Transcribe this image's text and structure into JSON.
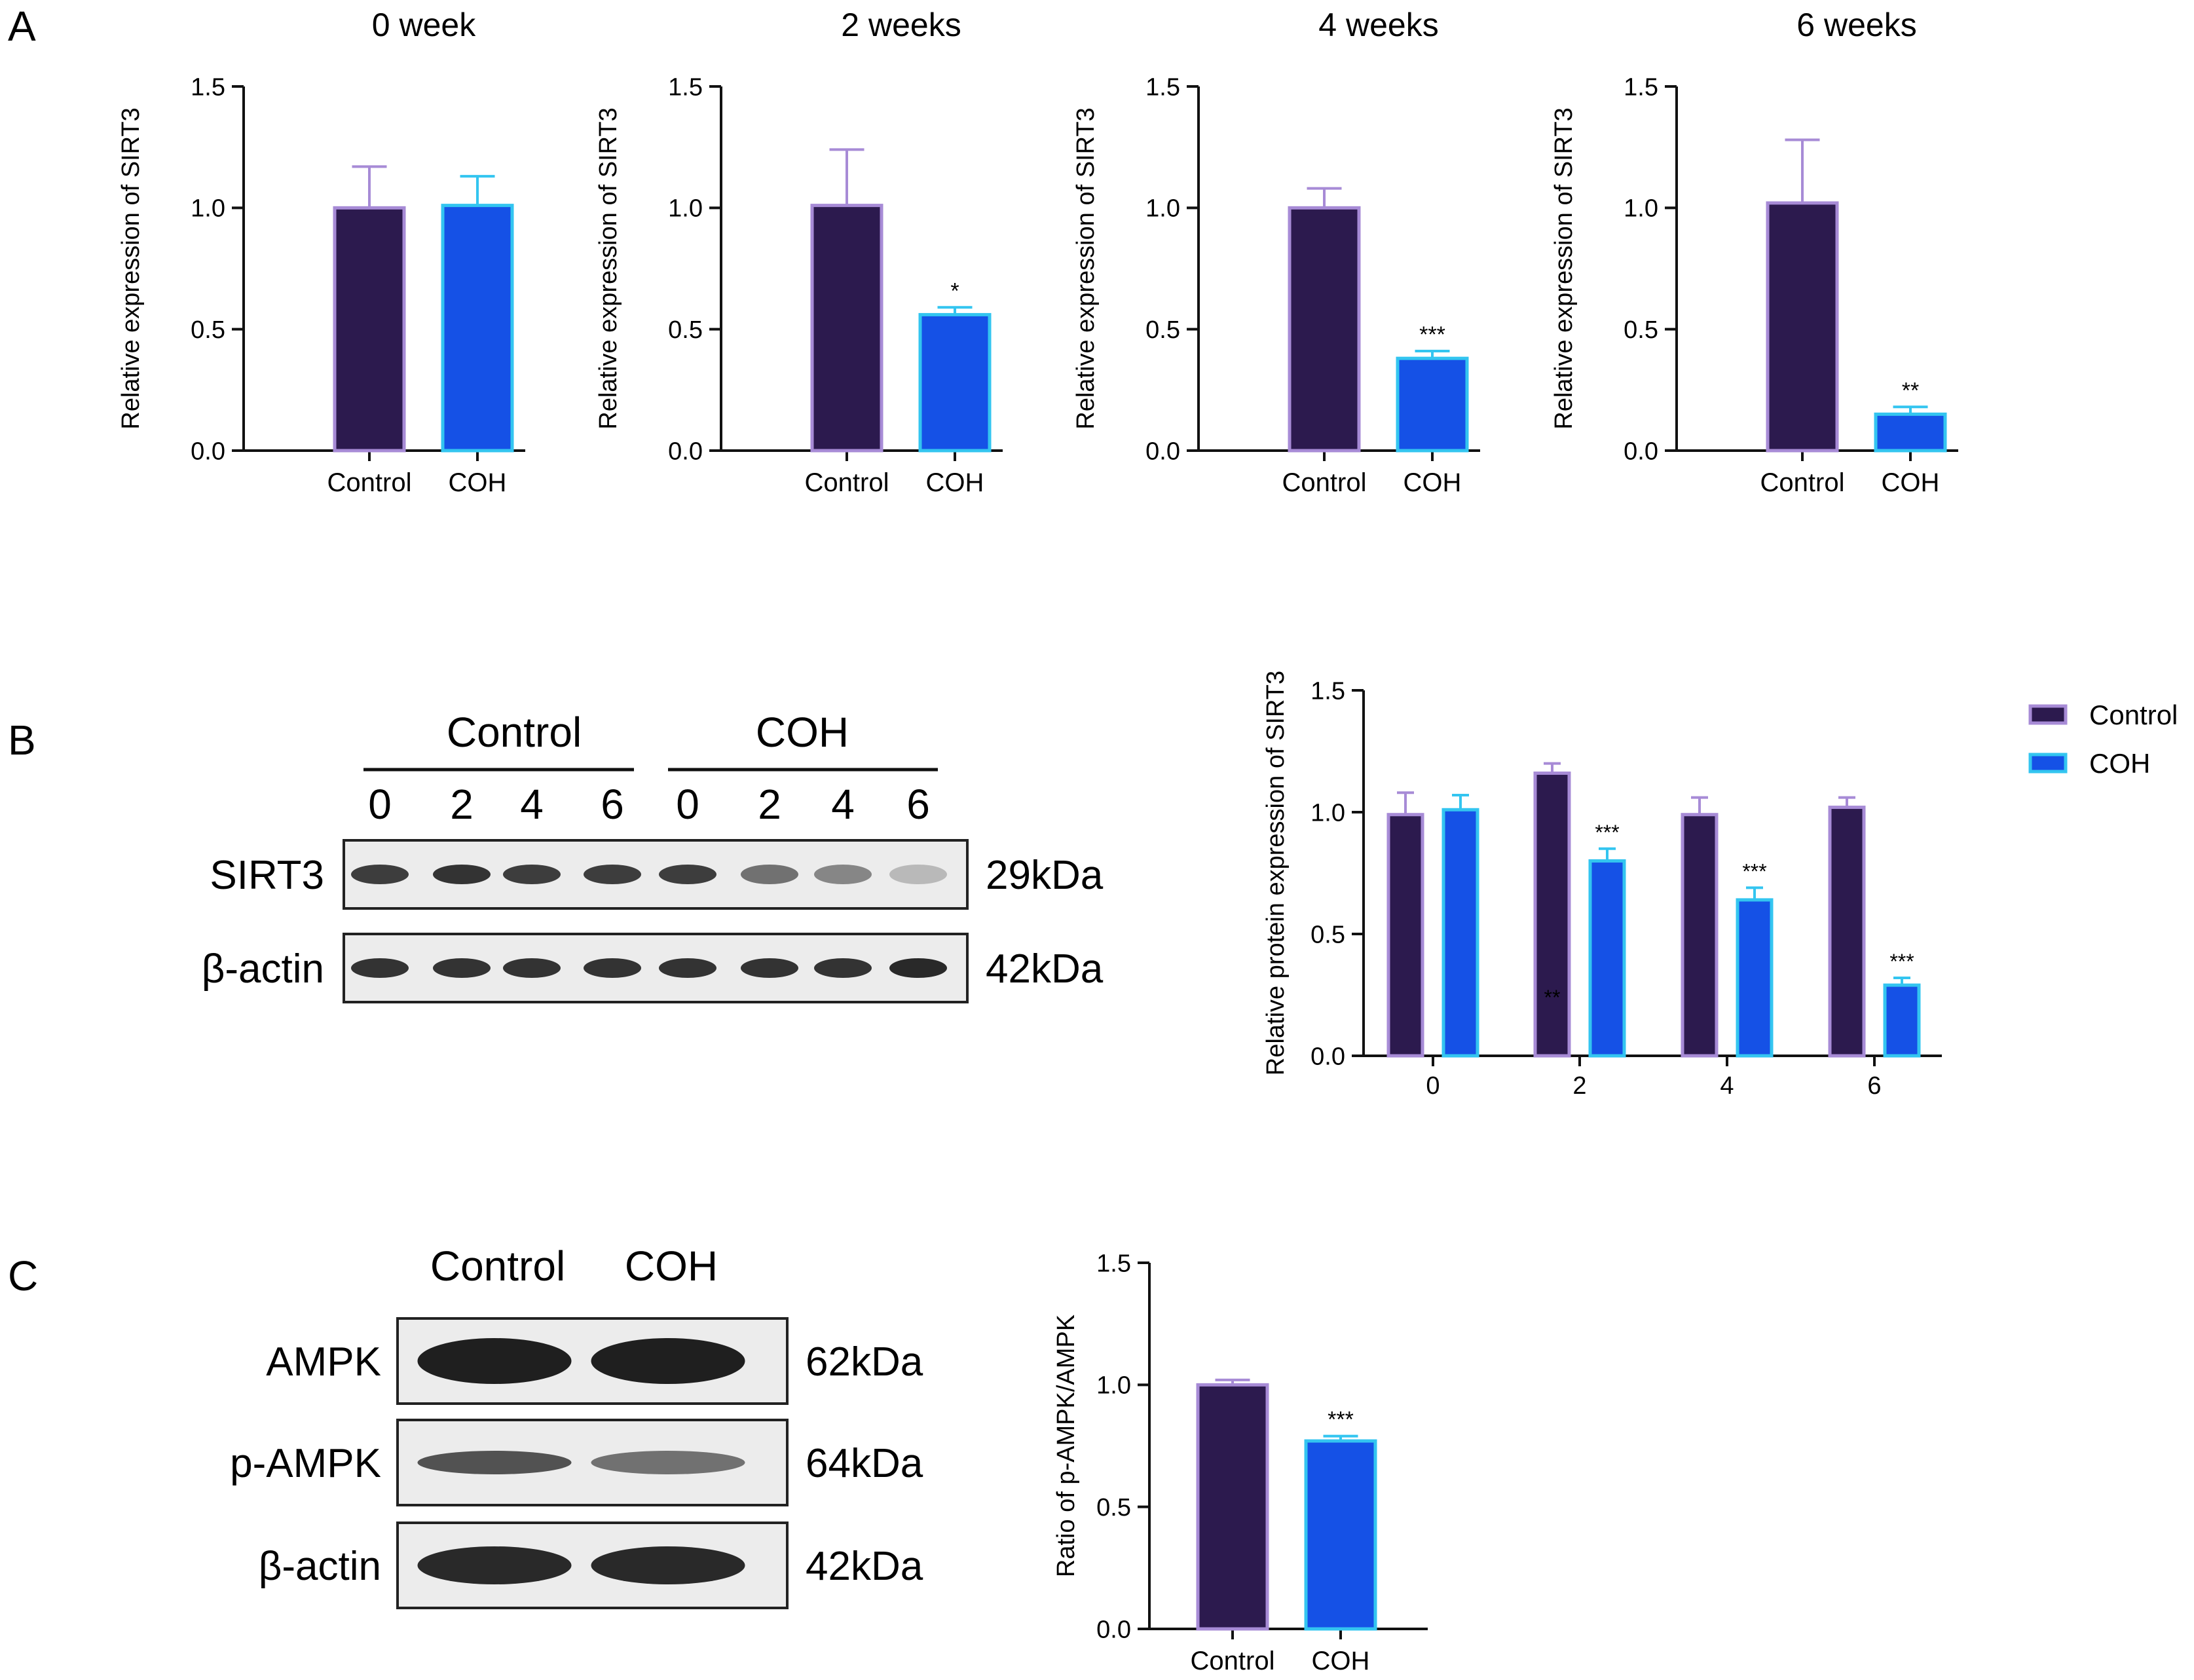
{
  "figure": {
    "panel_labels": {
      "a": "A",
      "b": "B",
      "c": "C"
    },
    "colors": {
      "control_fill": "#2c1a4e",
      "control_edge": "#a78bd6",
      "coh_fill": "#1551e6",
      "coh_edge": "#33c5f0",
      "axis": "#111111",
      "blot_bg": "#ececec",
      "band": "#1f1f1f"
    }
  },
  "panel_a": {
    "ylabel": "Relative expression of SIRT3",
    "yticks": [
      "0.0",
      "0.5",
      "1.0",
      "1.5"
    ],
    "categories": [
      "Control",
      "COH"
    ]
  },
  "chart_data": [
    {
      "type": "bar",
      "title": "0 week",
      "ylabel": "Relative expression of SIRT3",
      "categories": [
        "Control",
        "COH"
      ],
      "values": [
        1.0,
        1.01
      ],
      "errors": [
        0.17,
        0.12
      ],
      "significance": [
        "",
        ""
      ],
      "ylim": [
        0,
        1.5
      ]
    },
    {
      "type": "bar",
      "title": "2 weeks",
      "ylabel": "Relative expression of SIRT3",
      "categories": [
        "Control",
        "COH"
      ],
      "values": [
        1.01,
        0.56
      ],
      "errors": [
        0.23,
        0.03
      ],
      "significance": [
        "",
        "*"
      ],
      "ylim": [
        0,
        1.5
      ]
    },
    {
      "type": "bar",
      "title": "4 weeks",
      "ylabel": "Relative expression of SIRT3",
      "categories": [
        "Control",
        "COH"
      ],
      "values": [
        1.0,
        0.38
      ],
      "errors": [
        0.08,
        0.03
      ],
      "significance": [
        "",
        "***"
      ],
      "ylim": [
        0,
        1.5
      ]
    },
    {
      "type": "bar",
      "title": "6 weeks",
      "ylabel": "Relative expression of SIRT3",
      "categories": [
        "Control",
        "COH"
      ],
      "values": [
        1.02,
        0.15
      ],
      "errors": [
        0.26,
        0.03
      ],
      "significance": [
        "",
        "**"
      ],
      "ylim": [
        0,
        1.5
      ]
    },
    {
      "type": "bar",
      "title": "",
      "ylabel": "Relative protein expression of SIRT3",
      "categories": [
        "0",
        "2",
        "4",
        "6"
      ],
      "series": [
        {
          "name": "Control",
          "values": [
            0.99,
            1.16,
            0.99,
            1.02
          ],
          "errors": [
            0.09,
            0.04,
            0.07,
            0.04
          ],
          "significance": [
            "",
            "",
            "",
            ""
          ]
        },
        {
          "name": "COH",
          "values": [
            1.01,
            0.8,
            0.64,
            0.29
          ],
          "errors": [
            0.06,
            0.05,
            0.05,
            0.03
          ],
          "significance": [
            "",
            "***",
            "***",
            "***"
          ]
        }
      ],
      "annotations": [
        "**"
      ],
      "legend_position": "top-right",
      "ylim": [
        0,
        1.5
      ],
      "yticks": [
        "0.0",
        "0.5",
        "1.0",
        "1.5"
      ]
    },
    {
      "type": "bar",
      "title": "",
      "ylabel": "Ratio of p-AMPK/AMPK",
      "categories": [
        "Control",
        "COH"
      ],
      "values": [
        1.0,
        0.77
      ],
      "errors": [
        0.02,
        0.02
      ],
      "significance": [
        "",
        "***"
      ],
      "ylim": [
        0,
        1.5
      ],
      "yticks": [
        "0.0",
        "0.5",
        "1.0",
        "1.5"
      ]
    }
  ],
  "blot_b": {
    "group_labels": [
      "Control",
      "COH"
    ],
    "lane_labels": [
      "0",
      "2",
      "4",
      "6",
      "0",
      "2",
      "4",
      "6"
    ],
    "rows": [
      {
        "protein": "SIRT3",
        "size": "29kDa",
        "intensity": [
          0.85,
          0.9,
          0.85,
          0.85,
          0.85,
          0.6,
          0.5,
          0.25
        ]
      },
      {
        "protein": "β-actin",
        "size": "42kDa",
        "intensity": [
          0.9,
          0.9,
          0.9,
          0.9,
          0.9,
          0.9,
          0.9,
          0.95
        ]
      }
    ]
  },
  "blot_c": {
    "group_labels": [
      "Control",
      "COH"
    ],
    "rows": [
      {
        "protein": "AMPK",
        "size": "62kDa",
        "intensity": [
          1.0,
          1.0
        ]
      },
      {
        "protein": "p-AMPK",
        "size": "64kDa",
        "intensity": [
          0.75,
          0.6
        ]
      },
      {
        "protein": "β-actin",
        "size": "42kDa",
        "intensity": [
          0.95,
          0.95
        ]
      }
    ]
  }
}
